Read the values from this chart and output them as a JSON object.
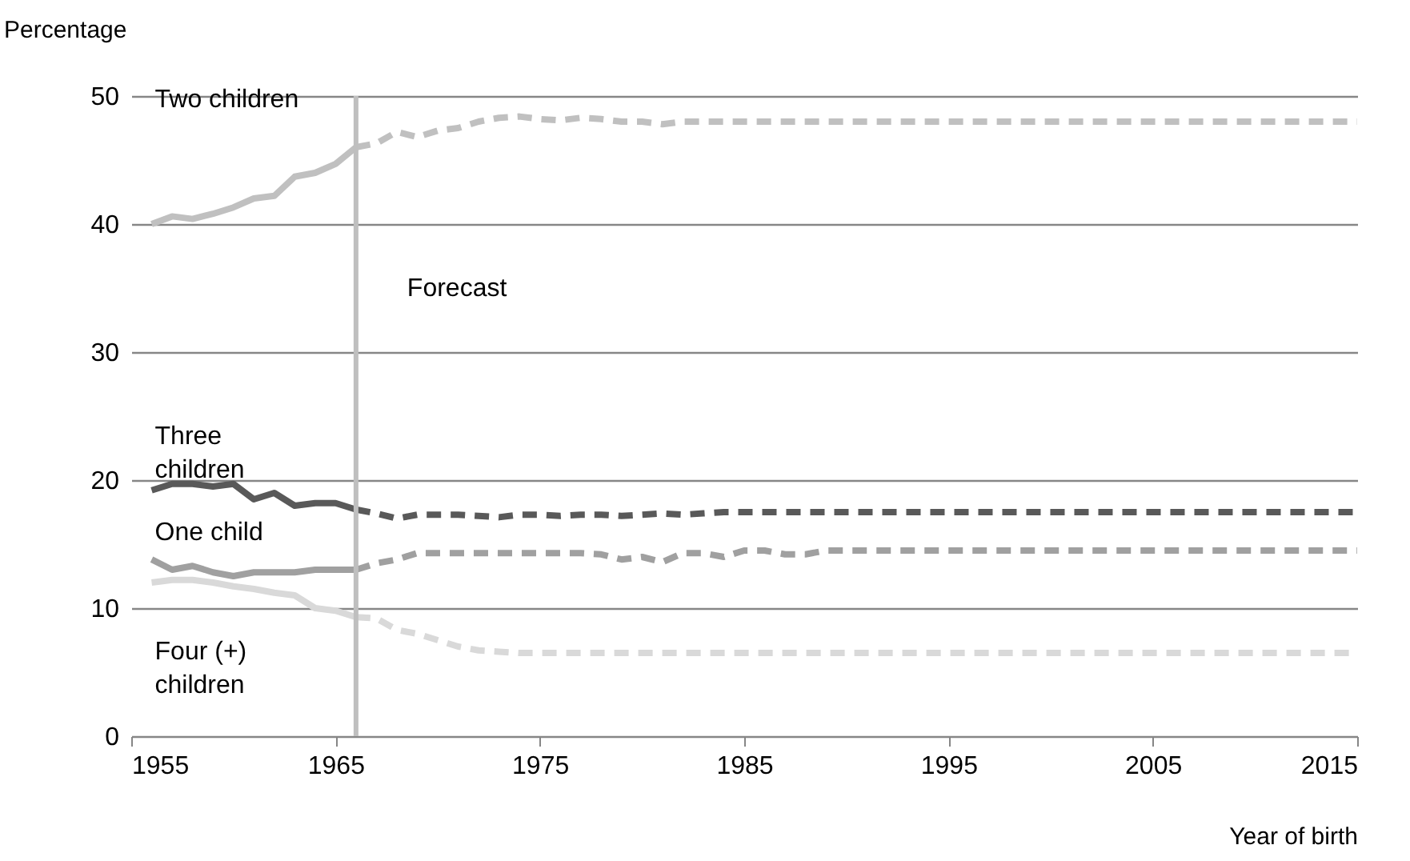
{
  "chart_data": {
    "type": "line",
    "xlabel": "Year of birth",
    "ylabel": "Percentage",
    "xlim": [
      1955,
      2015
    ],
    "xticks": [
      1955,
      1965,
      1975,
      1985,
      1995,
      2005,
      2015
    ],
    "ylim": [
      0,
      50
    ],
    "yticks": [
      0,
      10,
      20,
      30,
      40,
      50
    ],
    "grid": "y",
    "ref_lines": [
      {
        "axis": "x",
        "value": 1966,
        "label": "Forecast",
        "color": "#bfbfbf"
      }
    ],
    "series": [
      {
        "name": "Two children",
        "color": "#c0c0c0",
        "line_style": "solid",
        "x": [
          1956,
          1957,
          1958,
          1959,
          1960,
          1961,
          1962,
          1963,
          1964,
          1965,
          1966
        ],
        "values": [
          40,
          40.6,
          40.4,
          40.8,
          41.3,
          42,
          42.2,
          43.7,
          44,
          44.7,
          46
        ]
      },
      {
        "color": "#c0c0c0",
        "line_style": "dashed",
        "x": [
          1966,
          1967,
          1968,
          1969,
          1970,
          1971,
          1972,
          1973,
          1974,
          1975,
          1976,
          1977,
          1978,
          1979,
          1980,
          1981,
          1982,
          1990,
          2000,
          2015
        ],
        "values": [
          46,
          46.3,
          47.2,
          46.8,
          47.3,
          47.5,
          48,
          48.3,
          48.4,
          48.2,
          48.1,
          48.3,
          48.2,
          48,
          48,
          47.8,
          48,
          48,
          48,
          48
        ]
      },
      {
        "name": "Three children",
        "color": "#595959",
        "line_style": "solid",
        "x": [
          1956,
          1957,
          1958,
          1959,
          1960,
          1961,
          1962,
          1963,
          1964,
          1965,
          1966
        ],
        "values": [
          19.2,
          19.7,
          19.7,
          19.5,
          19.7,
          18.5,
          19,
          18,
          18.2,
          18.2,
          17.7
        ]
      },
      {
        "color": "#595959",
        "line_style": "dashed",
        "x": [
          1966,
          1967,
          1968,
          1969,
          1970,
          1971,
          1972,
          1973,
          1974,
          1975,
          1976,
          1977,
          1978,
          1979,
          1980,
          1981,
          1982,
          1983,
          1984,
          1990,
          2000,
          2015
        ],
        "values": [
          17.7,
          17.4,
          17,
          17.3,
          17.3,
          17.3,
          17.2,
          17.1,
          17.3,
          17.3,
          17.2,
          17.3,
          17.3,
          17.2,
          17.3,
          17.4,
          17.3,
          17.4,
          17.5,
          17.5,
          17.5,
          17.5
        ]
      },
      {
        "name": "One child",
        "color": "#a0a0a0",
        "line_style": "solid",
        "x": [
          1956,
          1957,
          1958,
          1959,
          1960,
          1961,
          1962,
          1963,
          1964,
          1965,
          1966
        ],
        "values": [
          13.8,
          13,
          13.3,
          12.8,
          12.5,
          12.8,
          12.8,
          12.8,
          13,
          13,
          13
        ]
      },
      {
        "color": "#a0a0a0",
        "line_style": "dashed",
        "x": [
          1966,
          1967,
          1968,
          1969,
          1970,
          1971,
          1972,
          1973,
          1974,
          1975,
          1976,
          1977,
          1978,
          1979,
          1980,
          1981,
          1982,
          1983,
          1984,
          1985,
          1986,
          1987,
          1988,
          1989,
          1990,
          2000,
          2015
        ],
        "values": [
          13,
          13.5,
          13.8,
          14.3,
          14.3,
          14.3,
          14.3,
          14.3,
          14.3,
          14.3,
          14.3,
          14.3,
          14.2,
          13.8,
          14,
          13.6,
          14.3,
          14.3,
          14,
          14.5,
          14.5,
          14.2,
          14.2,
          14.5,
          14.5,
          14.5,
          14.5
        ]
      },
      {
        "name": "Four (+) children",
        "color": "#d9d9d9",
        "line_style": "solid",
        "x": [
          1956,
          1957,
          1958,
          1959,
          1960,
          1961,
          1962,
          1963,
          1964,
          1965,
          1966
        ],
        "values": [
          12,
          12.2,
          12.2,
          12,
          11.7,
          11.5,
          11.2,
          11,
          10,
          9.8,
          9.3
        ]
      },
      {
        "color": "#d9d9d9",
        "line_style": "dashed",
        "x": [
          1966,
          1967,
          1968,
          1969,
          1970,
          1971,
          1972,
          1973,
          1974,
          1975,
          1976,
          1990,
          2000,
          2015
        ],
        "values": [
          9.3,
          9.2,
          8.3,
          8,
          7.5,
          7,
          6.7,
          6.6,
          6.5,
          6.5,
          6.5,
          6.5,
          6.5,
          6.5
        ]
      }
    ]
  }
}
